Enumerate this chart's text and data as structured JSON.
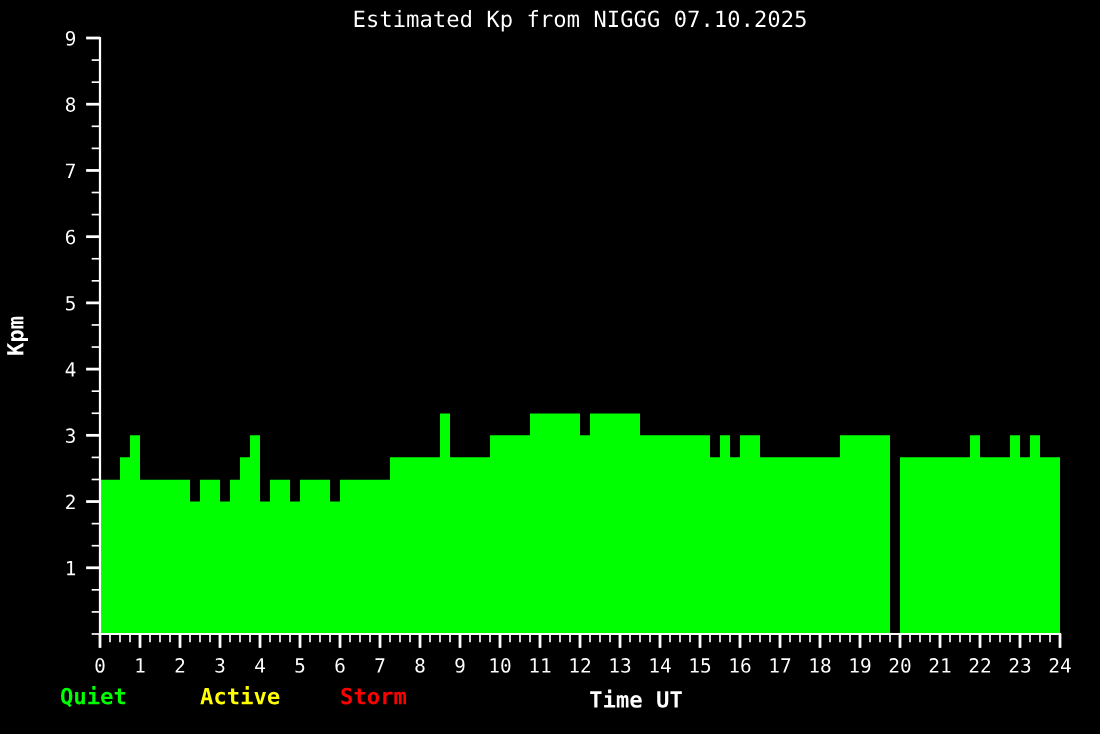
{
  "chart_data": {
    "type": "histogram",
    "title": "Estimated Kp from NIGGG 07.10.2025",
    "xlabel": "Time UT",
    "ylabel": "Kpm",
    "bins": [
      0,
      0.25,
      0.5,
      0.75,
      1,
      1.25,
      1.5,
      1.75,
      2,
      2.25,
      2.5,
      2.75,
      3,
      3.25,
      3.5,
      3.75,
      4,
      4.25,
      4.5,
      4.75,
      5,
      5.25,
      5.5,
      5.75,
      6,
      6.25,
      6.5,
      6.75,
      7,
      7.25,
      7.5,
      7.75,
      8,
      8.25,
      8.5,
      8.75,
      9,
      9.25,
      9.5,
      9.75,
      10,
      10.25,
      10.5,
      10.75,
      11,
      11.25,
      11.5,
      11.75,
      12,
      12.25,
      12.5,
      12.75,
      13,
      13.25,
      13.5,
      13.75,
      14,
      14.25,
      14.5,
      14.75,
      15,
      15.25,
      15.5,
      15.75,
      16,
      16.25,
      16.5,
      16.75,
      17,
      17.25,
      17.5,
      17.75,
      18,
      18.25,
      18.5,
      18.75,
      19,
      19.25,
      19.5,
      19.75,
      20,
      20.25,
      20.5,
      20.75,
      21,
      21.25,
      21.5,
      21.75,
      22,
      22.25,
      22.5,
      22.75,
      23,
      23.25,
      23.5,
      23.75,
      24
    ],
    "annotations": [
      "Quiet",
      "Active",
      "Storm"
    ],
    "color": "#00ff00",
    "values": [
      2.33,
      2.33,
      2.67,
      3,
      2.33,
      2.33,
      2.33,
      2.33,
      2.33,
      2,
      2.33,
      2.33,
      2,
      2.33,
      2.67,
      3,
      2,
      2.33,
      2.33,
      2,
      2.33,
      2.33,
      2.33,
      2,
      2.33,
      2.33,
      2.33,
      2.33,
      2.33,
      2.67,
      2.67,
      2.67,
      2.67,
      2.67,
      3.33,
      2.67,
      2.67,
      2.67,
      2.67,
      3,
      3,
      3,
      3,
      3.33,
      3.33,
      3.33,
      3.33,
      3.33,
      3,
      3.33,
      3.33,
      3.33,
      3.33,
      3.33,
      3,
      3,
      3,
      3,
      3,
      3,
      3,
      2.67,
      3,
      2.67,
      3,
      3,
      2.67,
      2.67,
      2.67,
      2.67,
      2.67,
      2.67,
      2.67,
      2.67,
      3,
      3,
      3,
      3,
      3,
      null,
      2.67,
      2.67,
      2.67,
      2.67,
      2.67,
      2.67,
      2.67,
      3,
      2.67,
      2.67,
      2.67,
      3,
      2.67,
      3,
      2.67,
      2.67
    ],
    "xlim": [
      0,
      24
    ],
    "xticks": [
      0,
      1,
      2,
      3,
      4,
      5,
      6,
      7,
      8,
      9,
      10,
      11,
      12,
      13,
      14,
      15,
      16,
      17,
      18,
      19,
      20,
      21,
      22,
      23,
      24
    ],
    "ylim": [
      0,
      9
    ],
    "yticks": [
      1,
      2,
      3,
      4,
      5,
      6,
      7,
      8,
      9
    ],
    "grid": false
  }
}
